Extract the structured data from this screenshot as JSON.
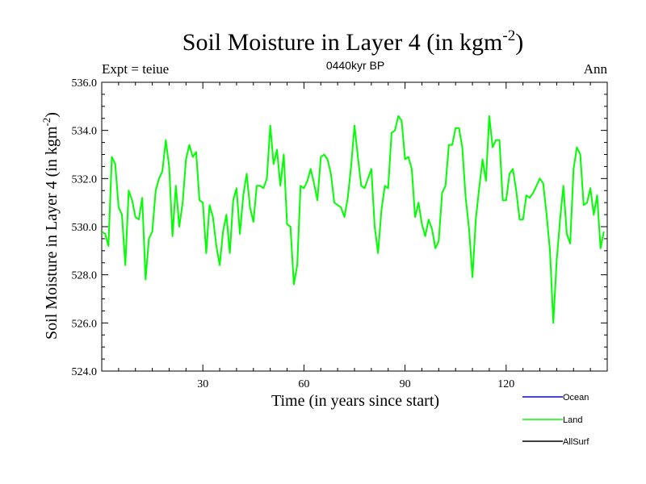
{
  "chart_data": {
    "type": "line",
    "title": "Soil Moisture in Layer 4 (in kgm",
    "title_sup": "-2",
    "title_close": ")",
    "subtitle_left": "Expt = teiue",
    "subtitle_center": "0440kyr BP",
    "subtitle_right": "Ann",
    "xlabel": "Time (in years since start)",
    "ylabel": "Soil Moisture in Layer 4 (in kgm",
    "ylabel_sup": "-2",
    "ylabel_close": ")",
    "xlim": [
      0,
      150
    ],
    "ylim": [
      524.0,
      536.0
    ],
    "xticks": [
      30,
      60,
      90,
      120
    ],
    "yticks": [
      524.0,
      526.0,
      528.0,
      530.0,
      532.0,
      534.0,
      536.0
    ],
    "ytick_labels": [
      "524.0",
      "526.0",
      "528.0",
      "530.0",
      "532.0",
      "534.0",
      "536.0"
    ],
    "legend_position": "bottom-right",
    "series": [
      {
        "name": "Ocean",
        "color": "#0000ff",
        "values": []
      },
      {
        "name": "Land",
        "color": "#00ff00",
        "x_start": 0,
        "x_step": 1,
        "values": [
          529.8,
          529.7,
          529.2,
          532.9,
          532.6,
          530.8,
          530.5,
          528.4,
          531.5,
          531.1,
          530.4,
          530.3,
          531.2,
          527.8,
          529.5,
          529.8,
          531.5,
          532.0,
          532.3,
          533.6,
          532.5,
          529.6,
          531.7,
          530.0,
          531.0,
          532.8,
          533.4,
          532.9,
          533.1,
          531.1,
          531.0,
          528.9,
          530.9,
          530.4,
          529.2,
          528.4,
          529.8,
          530.5,
          528.9,
          531.1,
          531.6,
          529.7,
          531.3,
          532.2,
          530.8,
          530.2,
          531.7,
          531.7,
          531.6,
          532.0,
          534.2,
          532.6,
          533.2,
          531.7,
          533.0,
          530.1,
          530.0,
          527.6,
          528.4,
          531.7,
          531.6,
          531.9,
          532.4,
          531.8,
          531.1,
          532.9,
          533.0,
          532.8,
          532.2,
          531.0,
          530.9,
          530.8,
          530.4,
          531.2,
          532.5,
          534.2,
          532.9,
          531.7,
          531.6,
          532.0,
          532.4,
          530.0,
          528.9,
          530.7,
          531.7,
          531.6,
          533.9,
          534.0,
          534.6,
          534.4,
          532.8,
          532.9,
          532.4,
          530.4,
          531.0,
          530.1,
          529.6,
          530.3,
          529.9,
          529.1,
          529.4,
          531.4,
          531.7,
          533.4,
          533.4,
          534.1,
          534.1,
          533.3,
          531.2,
          529.9,
          527.9,
          530.3,
          531.6,
          532.8,
          531.9,
          534.6,
          533.3,
          533.6,
          533.6,
          531.1,
          531.1,
          532.2,
          532.4,
          531.5,
          530.3,
          530.3,
          531.3,
          531.2,
          531.4,
          531.7,
          532.0,
          531.8,
          530.5,
          529.0,
          526.0,
          528.6,
          530.3,
          531.7,
          529.7,
          529.3,
          532.4,
          533.3,
          533.0,
          530.9,
          531.0,
          531.6,
          530.5,
          531.3,
          529.1,
          529.8
        ]
      },
      {
        "name": "AllSurf",
        "color": "#000000",
        "values": []
      }
    ]
  }
}
